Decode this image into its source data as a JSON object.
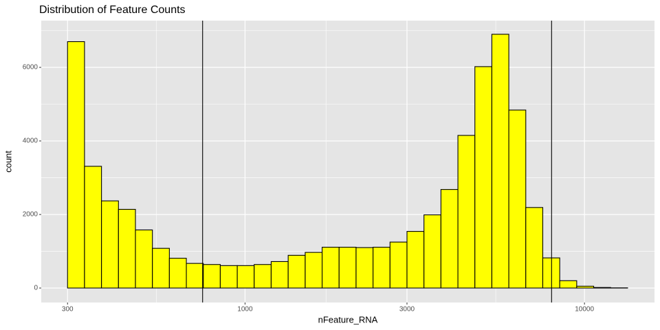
{
  "chart_data": {
    "type": "histogram",
    "title": "Distribution of Feature Counts",
    "x_label": "nFeature_RNA",
    "y_label": "count",
    "x_log": true,
    "bins": [
      300,
      336.6,
      377.7,
      423.8,
      475.5,
      533.5,
      598.6,
      671.6,
      753.6,
      845.5,
      948.7,
      1064,
      1194,
      1340,
      1504,
      1687,
      1893,
      2124,
      2383,
      2674,
      3000,
      3366,
      3777,
      4238,
      4755,
      5335,
      5986,
      6716,
      7536,
      8455,
      9487,
      10644,
      11943,
      13400
    ],
    "values": [
      6700,
      3310,
      2370,
      2140,
      1580,
      1080,
      810,
      670,
      640,
      610,
      610,
      640,
      720,
      890,
      970,
      1110,
      1110,
      1100,
      1110,
      1250,
      1540,
      1990,
      2680,
      4150,
      6020,
      6900,
      4840,
      2190,
      820,
      200,
      50,
      15,
      5
    ],
    "color": "#ffff00",
    "edge_color": "#000000",
    "vlines": [
      750,
      8000
    ],
    "xlim": [
      251,
      16080
    ],
    "xticks": [
      300,
      1000,
      3000,
      10000
    ],
    "ylim": [
      -393,
      7271
    ],
    "yticks": [
      0,
      2000,
      4000,
      6000
    ],
    "grid": true
  }
}
